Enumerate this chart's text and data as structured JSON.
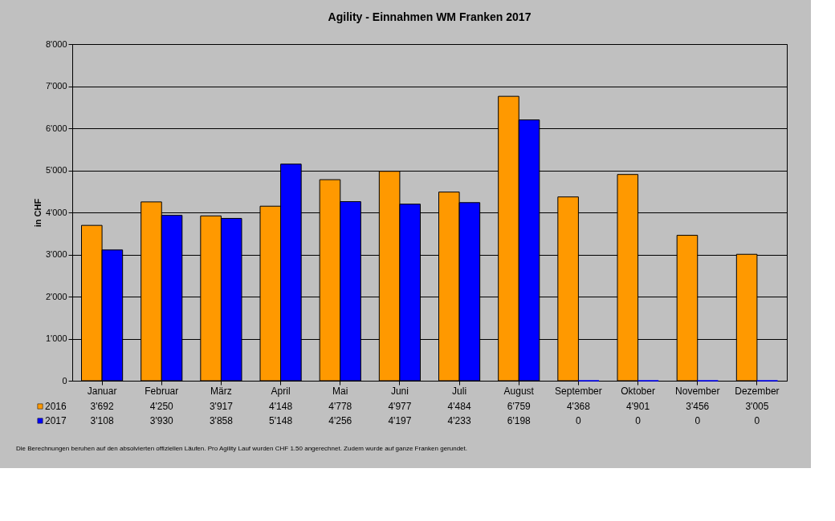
{
  "chart_data": {
    "type": "bar",
    "title": "Agility - Einnahmen WM Franken 2017",
    "ylabel": "in CHF",
    "categories": [
      "Januar",
      "Februar",
      "März",
      "April",
      "Mai",
      "Juni",
      "Juli",
      "August",
      "September",
      "Oktober",
      "November",
      "Dezember"
    ],
    "series": [
      {
        "name": "2016",
        "color": "#ff9900",
        "values": [
          3692,
          4250,
          3917,
          4148,
          4778,
          4977,
          4484,
          6759,
          4368,
          4901,
          3456,
          3005
        ],
        "value_labels": [
          "3'692",
          "4'250",
          "3'917",
          "4'148",
          "4'778",
          "4'977",
          "4'484",
          "6'759",
          "4'368",
          "4'901",
          "3'456",
          "3'005"
        ]
      },
      {
        "name": "2017",
        "color": "#0000ff",
        "values": [
          3108,
          3930,
          3858,
          5148,
          4256,
          4197,
          4233,
          6198,
          0,
          0,
          0,
          0
        ],
        "value_labels": [
          "3'108",
          "3'930",
          "3'858",
          "5'148",
          "4'256",
          "4'197",
          "4'233",
          "6'198",
          "0",
          "0",
          "0",
          "0"
        ]
      }
    ],
    "ylim": [
      0,
      8000
    ],
    "yticks": [
      0,
      {
        "value": 1000,
        "label": "1'000"
      },
      {
        "value": 2000,
        "label": "2'000"
      },
      {
        "value": 3000,
        "label": "3'000"
      },
      {
        "value": 4000,
        "label": "4'000"
      },
      {
        "value": 5000,
        "label": "5'000"
      },
      {
        "value": 6000,
        "label": "6'000"
      },
      {
        "value": 7000,
        "label": "7'000"
      },
      {
        "value": 8000,
        "label": "8'000"
      }
    ],
    "grid": "y",
    "legend": "bottom",
    "annotations": [
      "Die Berechnungen beruhen auf den absolvierten offiziellen Läufen. Pro Agility Lauf wurden CHF 1.50 angerechnet. Zudem wurde auf ganze Franken gerundet."
    ]
  }
}
